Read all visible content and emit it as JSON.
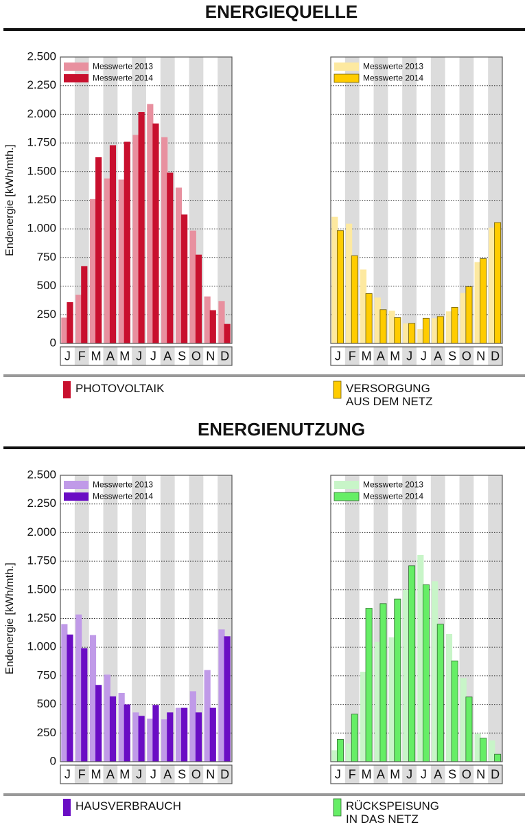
{
  "section_titles": [
    "ENERGIEQUELLE",
    "ENERGIENUTZUNG"
  ],
  "chart_data": [
    {
      "type": "bar",
      "title": "PHOTOVOLTAIK",
      "ylabel": "Endenergie [kWh/mth.]",
      "categories": [
        "J",
        "F",
        "M",
        "A",
        "M",
        "J",
        "J",
        "A",
        "S",
        "O",
        "N",
        "D"
      ],
      "series": [
        {
          "name": "Messwerte 2013",
          "color": "#e8909f",
          "values": [
            225,
            425,
            1260,
            1440,
            1430,
            1820,
            2090,
            1800,
            1360,
            985,
            410,
            370
          ]
        },
        {
          "name": "Messwerte 2014",
          "color": "#c8102e",
          "values": [
            360,
            675,
            1625,
            1730,
            1760,
            2020,
            1920,
            1490,
            1125,
            775,
            290,
            170
          ]
        }
      ],
      "ylim": [
        0,
        2500
      ],
      "yticks": [
        0,
        250,
        500,
        750,
        {
          "value": 1000,
          "label": "1.000"
        },
        {
          "value": 1250,
          "label": "1.250"
        },
        {
          "value": 1500,
          "label": "1.500"
        },
        {
          "value": 1750,
          "label": "1.750"
        },
        {
          "value": 2000,
          "label": "2.000"
        },
        {
          "value": 2250,
          "label": "2.250"
        },
        {
          "value": 2500,
          "label": "2.500"
        }
      ],
      "grid": true,
      "tick_labels": true
    },
    {
      "type": "bar",
      "title": "VERSORGUNG\nAUS DEM NETZ",
      "categories": [
        "J",
        "F",
        "M",
        "A",
        "M",
        "J",
        "J",
        "A",
        "S",
        "O",
        "N",
        "D"
      ],
      "series": [
        {
          "name": "Messwerte 2013",
          "color": "#fde9a0",
          "values": [
            1105,
            1045,
            645,
            400,
            285,
            175,
            125,
            220,
            280,
            440,
            710,
            1010
          ]
        },
        {
          "name": "Messwerte 2014",
          "color": "#ffcc00",
          "edgecolor": "#6b5a00",
          "values": [
            985,
            765,
            435,
            295,
            225,
            175,
            220,
            235,
            315,
            495,
            740,
            1055
          ]
        }
      ],
      "ylim": [
        0,
        2500
      ],
      "yticks": [
        0,
        250,
        500,
        750,
        1000,
        1250,
        1500,
        1750,
        2000,
        2250,
        2500
      ],
      "grid": true,
      "tick_labels": false
    },
    {
      "type": "bar",
      "title": "HAUSVERBRAUCH",
      "ylabel": "Endenergie [kWh/mth.]",
      "categories": [
        "J",
        "F",
        "M",
        "A",
        "M",
        "J",
        "J",
        "A",
        "S",
        "O",
        "N",
        "D"
      ],
      "series": [
        {
          "name": "Messwerte 2013",
          "color": "#c09ae8",
          "values": [
            1200,
            1285,
            1105,
            760,
            600,
            430,
            375,
            370,
            470,
            615,
            800,
            1155
          ]
        },
        {
          "name": "Messwerte 2014",
          "color": "#6a0dc4",
          "values": [
            1110,
            990,
            670,
            570,
            500,
            400,
            495,
            430,
            470,
            430,
            470,
            1095
          ]
        }
      ],
      "ylim": [
        0,
        2500
      ],
      "yticks": [
        0,
        250,
        500,
        750,
        {
          "value": 1000,
          "label": "1.000"
        },
        {
          "value": 1250,
          "label": "1.250"
        },
        {
          "value": 1500,
          "label": "1.500"
        },
        {
          "value": 1750,
          "label": "1.750"
        },
        {
          "value": 2000,
          "label": "2.000"
        },
        {
          "value": 2250,
          "label": "2.250"
        },
        {
          "value": 2500,
          "label": "2.500"
        }
      ],
      "grid": true,
      "tick_labels": true
    },
    {
      "type": "bar",
      "title": "RÜCKSPEISUNG\nIN DAS NETZ",
      "categories": [
        "J",
        "F",
        "M",
        "A",
        "M",
        "J",
        "J",
        "A",
        "S",
        "O",
        "N",
        "D"
      ],
      "series": [
        {
          "name": "Messwerte 2013",
          "color": "#c8f5c8",
          "values": [
            100,
            160,
            785,
            1045,
            1085,
            1500,
            1805,
            1575,
            1115,
            730,
            245,
            185
          ]
        },
        {
          "name": "Messwerte 2014",
          "color": "#66ee66",
          "edgecolor": "#2f6b2f",
          "values": [
            195,
            415,
            1340,
            1380,
            1420,
            1710,
            1545,
            1200,
            880,
            565,
            205,
            65
          ]
        }
      ],
      "ylim": [
        0,
        2500
      ],
      "yticks": [
        0,
        250,
        500,
        750,
        1000,
        1250,
        1500,
        1750,
        2000,
        2250,
        2500
      ],
      "grid": true,
      "tick_labels": false
    }
  ]
}
